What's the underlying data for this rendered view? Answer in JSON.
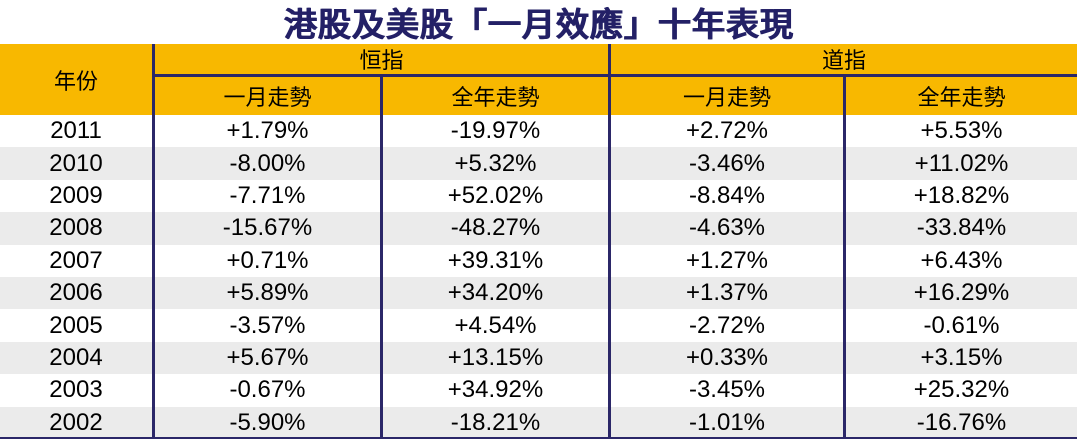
{
  "title": "港股及美股「一月效應」十年表現",
  "colors": {
    "header_bg": "#F8B800",
    "line_navy": "#2B2768",
    "title_navy": "#232066",
    "alt_row_bg": "#EBEBEB",
    "text": "#000000"
  },
  "table": {
    "year_header": "年份",
    "groups": [
      {
        "label": "恒指",
        "sub": [
          "一月走勢",
          "全年走勢"
        ]
      },
      {
        "label": "道指",
        "sub": [
          "一月走勢",
          "全年走勢"
        ]
      }
    ],
    "rows": [
      [
        "2011",
        "+1.79%",
        "-19.97%",
        "+2.72%",
        "+5.53%"
      ],
      [
        "2010",
        "-8.00%",
        "+5.32%",
        "-3.46%",
        "+11.02%"
      ],
      [
        "2009",
        "-7.71%",
        "+52.02%",
        "-8.84%",
        "+18.82%"
      ],
      [
        "2008",
        "-15.67%",
        "-48.27%",
        "-4.63%",
        "-33.84%"
      ],
      [
        "2007",
        "+0.71%",
        "+39.31%",
        "+1.27%",
        "+6.43%"
      ],
      [
        "2006",
        "+5.89%",
        "+34.20%",
        "+1.37%",
        "+16.29%"
      ],
      [
        "2005",
        "-3.57%",
        "+4.54%",
        "-2.72%",
        "-0.61%"
      ],
      [
        "2004",
        "+5.67%",
        "+13.15%",
        "+0.33%",
        "+3.15%"
      ],
      [
        "2003",
        "-0.67%",
        "+34.92%",
        "-3.45%",
        "+25.32%"
      ],
      [
        "2002",
        "-5.90%",
        "-18.21%",
        "-1.01%",
        "-16.76%"
      ]
    ]
  },
  "chart_data": {
    "type": "table",
    "title": "港股及美股「一月效應」十年表現",
    "columns": [
      "年份",
      "恒指 一月走勢",
      "恒指 全年走勢",
      "道指 一月走勢",
      "道指 全年走勢"
    ],
    "rows": [
      [
        "2011",
        "+1.79%",
        "-19.97%",
        "+2.72%",
        "+5.53%"
      ],
      [
        "2010",
        "-8.00%",
        "+5.32%",
        "-3.46%",
        "+11.02%"
      ],
      [
        "2009",
        "-7.71%",
        "+52.02%",
        "-8.84%",
        "+18.82%"
      ],
      [
        "2008",
        "-15.67%",
        "-48.27%",
        "-4.63%",
        "-33.84%"
      ],
      [
        "2007",
        "+0.71%",
        "+39.31%",
        "+1.27%",
        "+6.43%"
      ],
      [
        "2006",
        "+5.89%",
        "+34.20%",
        "+1.37%",
        "+16.29%"
      ],
      [
        "2005",
        "-3.57%",
        "+4.54%",
        "-2.72%",
        "-0.61%"
      ],
      [
        "2004",
        "+5.67%",
        "+13.15%",
        "+0.33%",
        "+3.15%"
      ],
      [
        "2003",
        "-0.67%",
        "+34.92%",
        "-3.45%",
        "+25.32%"
      ],
      [
        "2002",
        "-5.90%",
        "-18.21%",
        "-1.01%",
        "-16.76%"
      ]
    ]
  }
}
